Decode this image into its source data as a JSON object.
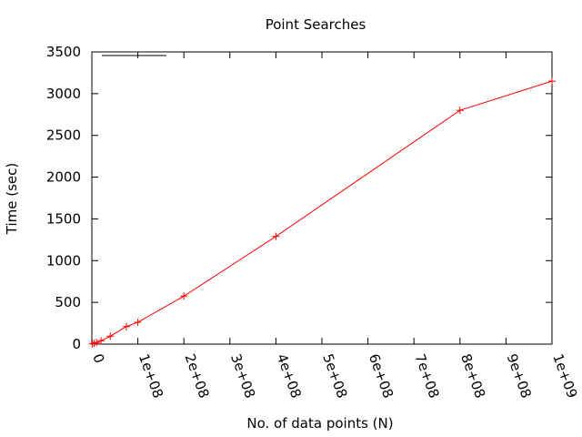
{
  "chart_data": {
    "type": "line",
    "title": "Point Searches",
    "xlabel": "No. of data points (N)",
    "ylabel": "Time (sec)",
    "xlim": [
      0,
      1000000000
    ],
    "ylim": [
      0,
      3500
    ],
    "x_ticks": [
      {
        "value": 0,
        "label": "0"
      },
      {
        "value": 100000000,
        "label": "1e+08"
      },
      {
        "value": 200000000,
        "label": "2e+08"
      },
      {
        "value": 300000000,
        "label": "3e+08"
      },
      {
        "value": 400000000,
        "label": "4e+08"
      },
      {
        "value": 500000000,
        "label": "5e+08"
      },
      {
        "value": 600000000,
        "label": "6e+08"
      },
      {
        "value": 700000000,
        "label": "7e+08"
      },
      {
        "value": 800000000,
        "label": "8e+08"
      },
      {
        "value": 900000000,
        "label": "9e+08"
      },
      {
        "value": 1000000000,
        "label": "1e+09"
      }
    ],
    "y_ticks": [
      {
        "value": 0,
        "label": "0"
      },
      {
        "value": 500,
        "label": "500"
      },
      {
        "value": 1000,
        "label": "1000"
      },
      {
        "value": 1500,
        "label": "1500"
      },
      {
        "value": 2000,
        "label": "2000"
      },
      {
        "value": 2500,
        "label": "2500"
      },
      {
        "value": 3000,
        "label": "3000"
      },
      {
        "value": 3500,
        "label": "3500"
      }
    ],
    "grid": false,
    "legend": {
      "placement": "top-left",
      "style": "black line sample, no label text"
    },
    "series": [
      {
        "color": "#ff0000",
        "marker": "plus",
        "x": [
          1000000,
          5000000,
          10000000,
          20000000,
          40000000,
          75000000,
          100000000,
          200000000,
          400000000,
          800000000,
          1000000000
        ],
        "y": [
          3,
          10,
          20,
          40,
          95,
          210,
          262,
          575,
          1290,
          2800,
          3150
        ]
      }
    ]
  }
}
